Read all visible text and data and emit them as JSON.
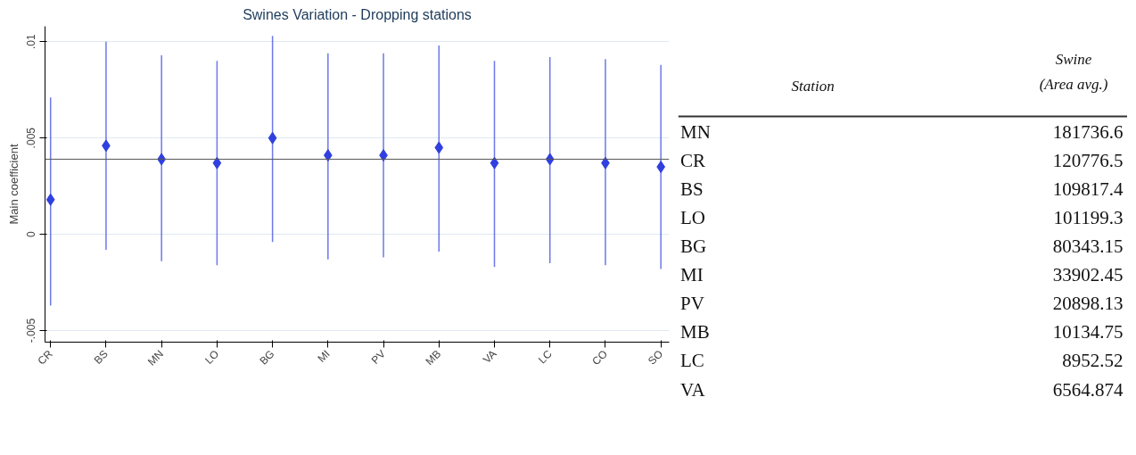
{
  "chart_data": [
    {
      "type": "scatter",
      "title": "Swines Variation - Dropping stations",
      "ylabel": "Main coefficient",
      "categories": [
        "CR",
        "BS",
        "MN",
        "LO",
        "BG",
        "MI",
        "PV",
        "MB",
        "VA",
        "LC",
        "CO",
        "SO"
      ],
      "series": [
        {
          "color": "#2f3fe0",
          "values": [
            0.0018,
            0.0046,
            0.0039,
            0.0037,
            0.005,
            0.0041,
            0.0041,
            0.0045,
            0.0037,
            0.0039,
            0.0037,
            0.0035
          ],
          "errors": [
            [
              -0.0037,
              0.0071
            ],
            [
              -0.0008,
              0.01
            ],
            [
              -0.0014,
              0.0093
            ],
            [
              -0.0016,
              0.009
            ],
            [
              -0.0004,
              0.0103
            ],
            [
              -0.0013,
              0.0094
            ],
            [
              -0.0012,
              0.0094
            ],
            [
              -0.0009,
              0.0098
            ],
            [
              -0.0017,
              0.009
            ],
            [
              -0.0015,
              0.0092
            ],
            [
              -0.0016,
              0.0091
            ],
            [
              -0.0018,
              0.0088
            ]
          ]
        }
      ],
      "ylim": [
        -0.0056,
        0.0108
      ],
      "yticks": [
        {
          "value": -0.005,
          "label": "-.005"
        },
        {
          "value": 0,
          "label": "0"
        },
        {
          "value": 0.005,
          "label": ".005"
        },
        {
          "value": 0.01,
          "label": ".01"
        }
      ],
      "ref_lines": [
        {
          "axis": "y",
          "value": 0.0039,
          "color": "#555555"
        }
      ],
      "marker": "diamond",
      "grid": "y"
    },
    {
      "type": "other",
      "annotations": [
        "Station",
        "Swine\n(Area avg.)"
      ],
      "categories": [
        "MN",
        "CR",
        "BS",
        "LO",
        "BG",
        "MI",
        "PV",
        "MB",
        "LC",
        "VA"
      ],
      "values": [
        181736.6,
        120776.5,
        109817.4,
        101199.3,
        80343.15,
        33902.45,
        20898.13,
        10134.75,
        8952.52,
        6564.874
      ],
      "data_labels": true
    }
  ]
}
